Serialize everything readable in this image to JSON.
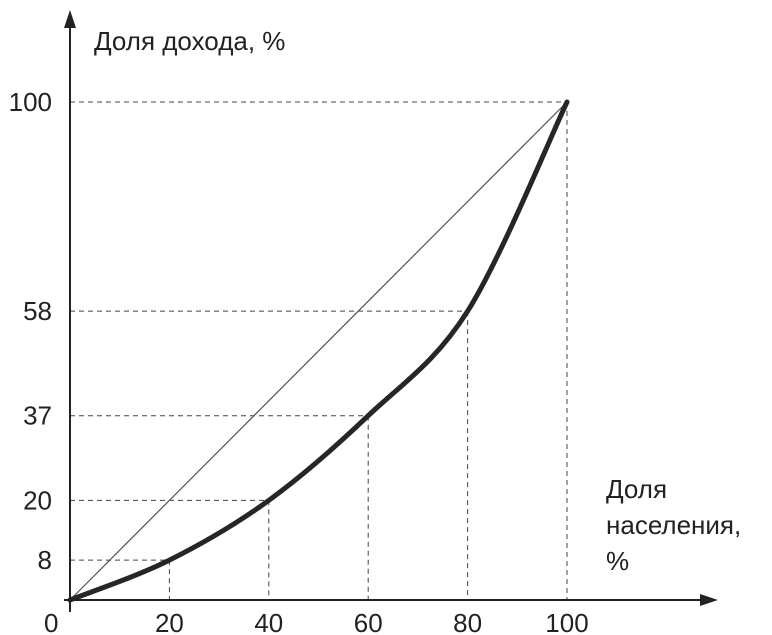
{
  "chart_data": {
    "type": "line",
    "ylabel": "Доля дохода, %",
    "xlabel_lines": [
      "Доля",
      "населения,",
      "%"
    ],
    "origin_label": "0",
    "x_ticks": [
      "20",
      "40",
      "60",
      "80",
      "100"
    ],
    "y_ticks": [
      "8",
      "20",
      "37",
      "58",
      "100"
    ],
    "xlim": [
      0,
      100
    ],
    "ylim": [
      0,
      100
    ],
    "grid": false,
    "series": [
      {
        "x": [
          0,
          20,
          40,
          60,
          80,
          100
        ],
        "y": [
          0,
          8,
          20,
          37,
          58,
          100
        ]
      },
      {
        "x": [
          0,
          100
        ],
        "y": [
          0,
          100
        ]
      }
    ],
    "guides": [
      {
        "x": 20,
        "y": 8
      },
      {
        "x": 40,
        "y": 20
      },
      {
        "x": 60,
        "y": 37
      },
      {
        "x": 80,
        "y": 58
      },
      {
        "x": 100,
        "y": 100
      }
    ]
  },
  "colors": {
    "axis": "#222222",
    "curve": "#262626",
    "guide": "#444444"
  }
}
